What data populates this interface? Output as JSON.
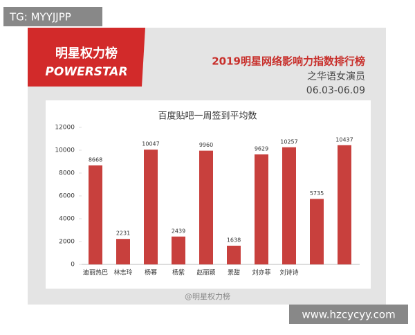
{
  "tag": "TG: MYYJJPP",
  "footer_url": "www.hzcycyy.com",
  "header": {
    "logo_cn": "明星权力榜",
    "logo_en": "POWERSTAR",
    "title": "2019明星网络影响力指数排行榜",
    "subtitle": "之华语女演员",
    "date_range": "06.03-06.09"
  },
  "watermark": "@明星权力榜",
  "chart_data": {
    "type": "bar",
    "title": "百度贴吧一周签到平均数",
    "categories": [
      "迪丽热巴",
      "林志玲",
      "杨幂",
      "杨紫",
      "赵丽颖",
      "景甜",
      "刘亦菲",
      "刘诗诗",
      null,
      null
    ],
    "values": [
      8668,
      2231,
      10047,
      2439,
      9960,
      1638,
      9629,
      10257,
      5735,
      10437
    ],
    "color": "#c8403d",
    "ylim": [
      0,
      12000
    ],
    "yticks": [
      0,
      2000,
      4000,
      6000,
      8000,
      10000,
      12000
    ]
  }
}
